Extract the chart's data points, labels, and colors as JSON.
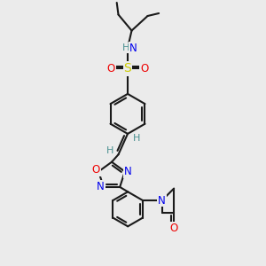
{
  "background_color": "#ebebeb",
  "atom_colors": {
    "C": "#1a1a1a",
    "H": "#4a9090",
    "N": "#0000ee",
    "O": "#ee0000",
    "S": "#cccc00"
  },
  "bond_color": "#1a1a1a",
  "bond_width": 1.5,
  "font_size_atom": 8.5
}
